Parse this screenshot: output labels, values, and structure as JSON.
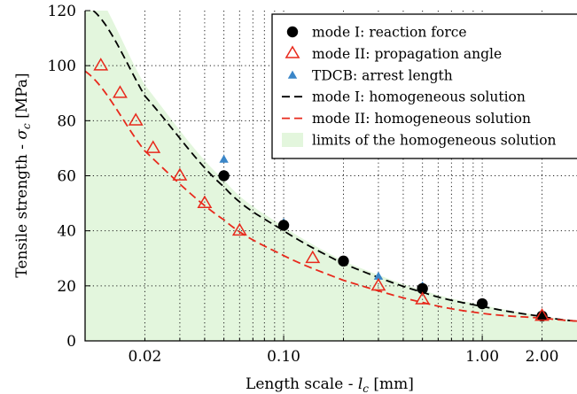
{
  "chart_data": {
    "type": "scatter",
    "xscale": "log",
    "xlim": [
      0.01,
      3.0
    ],
    "ylim": [
      0,
      120
    ],
    "xlabel": "Length scale - l_c [mm]",
    "ylabel": "Tensile strength - σ_c [MPa]",
    "xlabel_parts": {
      "pre": "Length scale - ",
      "var": "l",
      "sub": "c",
      "post": " [mm]"
    },
    "ylabel_parts": {
      "pre": "Tensile strength - ",
      "var": "σ",
      "sub": "c",
      "post": " [MPa]"
    },
    "xticks": [
      {
        "value": 0.02,
        "label": "0.02"
      },
      {
        "value": 0.1,
        "label": "0.10"
      },
      {
        "value": 1.0,
        "label": "1.00"
      },
      {
        "value": 2.0,
        "label": "2.00"
      }
    ],
    "yticks": [
      0,
      20,
      40,
      60,
      80,
      100,
      120
    ],
    "grid": true,
    "legend_position": "top-right",
    "series": [
      {
        "name": "mode I: reaction force",
        "kind": "points",
        "marker": "circle",
        "color": "#000000",
        "points": [
          [
            0.05,
            60
          ],
          [
            0.1,
            42
          ],
          [
            0.2,
            29
          ],
          [
            0.5,
            19
          ],
          [
            1.0,
            13.5
          ],
          [
            2.0,
            9
          ]
        ]
      },
      {
        "name": "mode II: propagation angle",
        "kind": "points",
        "marker": "triangle-open",
        "color": "#e8291c",
        "points": [
          [
            0.012,
            100
          ],
          [
            0.015,
            90
          ],
          [
            0.018,
            80
          ],
          [
            0.022,
            70
          ],
          [
            0.03,
            60
          ],
          [
            0.04,
            50
          ],
          [
            0.06,
            40
          ],
          [
            0.14,
            30
          ],
          [
            0.3,
            20
          ],
          [
            0.5,
            15
          ],
          [
            2.0,
            9
          ]
        ]
      },
      {
        "name": "TDCB: arrest length",
        "kind": "points",
        "marker": "triangle-filled",
        "color": "#3a86c8",
        "points": [
          [
            0.05,
            66
          ],
          [
            0.1,
            43
          ],
          [
            0.3,
            23.5
          ],
          [
            0.5,
            20
          ],
          [
            2.0,
            9.5
          ]
        ]
      },
      {
        "name": "mode I: homogeneous solution",
        "kind": "line",
        "dash": "dashed",
        "color": "#000000",
        "points": [
          [
            0.011,
            120
          ],
          [
            0.02,
            89
          ],
          [
            0.05,
            56
          ],
          [
            0.1,
            40
          ],
          [
            0.2,
            28
          ],
          [
            0.5,
            17.7
          ],
          [
            1.0,
            12.5
          ],
          [
            2.0,
            8.9
          ],
          [
            3.0,
            7.2
          ]
        ]
      },
      {
        "name": "mode II: homogeneous solution",
        "kind": "line",
        "dash": "dashed",
        "color": "#e8291c",
        "points": [
          [
            0.01,
            98
          ],
          [
            0.02,
            69
          ],
          [
            0.05,
            44
          ],
          [
            0.1,
            31
          ],
          [
            0.2,
            22
          ],
          [
            0.5,
            14
          ],
          [
            1.0,
            10
          ],
          [
            2.0,
            8.3
          ],
          [
            3.0,
            7.2
          ]
        ]
      },
      {
        "name": "limits of the homogeneous solution",
        "kind": "band",
        "color": "#e3f6dd",
        "upper": [
          [
            0.01,
            132
          ],
          [
            0.02,
            93
          ],
          [
            0.05,
            58.5
          ],
          [
            0.1,
            41.5
          ],
          [
            0.2,
            29
          ],
          [
            0.5,
            18.5
          ],
          [
            1.0,
            13
          ],
          [
            2.0,
            9.2
          ],
          [
            3.0,
            7.5
          ]
        ],
        "lower": [
          [
            0.01,
            0
          ],
          [
            3.0,
            0
          ]
        ]
      }
    ]
  }
}
